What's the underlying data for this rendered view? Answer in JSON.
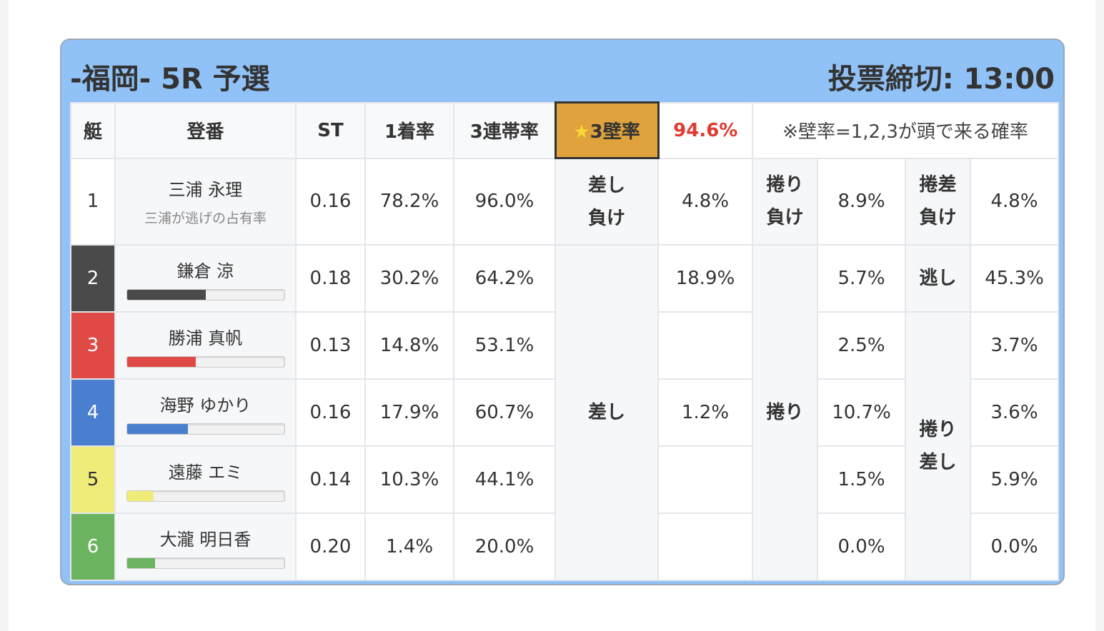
{
  "header": {
    "title": "-福岡- 5R 予選",
    "deadline": "投票締切: 13:00"
  },
  "columns": {
    "boat": "艇",
    "name": "登番",
    "st": "ST",
    "first": "1着率",
    "top3": "3連帯率",
    "wall_label": "3壁率",
    "wall_value": "94.6%",
    "note": "※壁率=1,2,3が頭で来る確率"
  },
  "star_icon": "star-icon",
  "row1": {
    "boat": "1",
    "name": "三浦 永理",
    "sub": "三浦が逃げの占有率",
    "st": "0.16",
    "first": "78.2%",
    "top3": "96.0%",
    "l1": "差し",
    "l1b": "負け",
    "v1": "4.8%",
    "l2": "捲り",
    "l2b": "負け",
    "v2": "8.9%",
    "l3": "捲差",
    "l3b": "負け",
    "v3": "4.8%"
  },
  "labels": {
    "sashi": "差し",
    "makuri": "捲り",
    "nige": "逃し",
    "makurisashi_a": "捲り",
    "makurisashi_b": "差し"
  },
  "rows": [
    {
      "boat": "2",
      "name": "鎌倉 涼",
      "st": "0.18",
      "first": "30.2%",
      "top3": "64.2%",
      "sashi": "18.9%",
      "makuri": "5.7%",
      "last": "45.3%",
      "bar": 50,
      "color": "#4a4a4a",
      "text": "#ffffff"
    },
    {
      "boat": "3",
      "name": "勝浦 真帆",
      "st": "0.13",
      "first": "14.8%",
      "top3": "53.1%",
      "sashi": "",
      "makuri": "2.5%",
      "last": "3.7%",
      "bar": 44,
      "color": "#e04a46",
      "text": "#ffffff"
    },
    {
      "boat": "4",
      "name": "海野 ゆかり",
      "st": "0.16",
      "first": "17.9%",
      "top3": "60.7%",
      "sashi": "1.2%",
      "makuri": "10.7%",
      "last": "3.6%",
      "bar": 39,
      "color": "#4a7fcf",
      "text": "#ffffff"
    },
    {
      "boat": "5",
      "name": "遠藤 エミ",
      "st": "0.14",
      "first": "10.3%",
      "top3": "44.1%",
      "sashi": "",
      "makuri": "1.5%",
      "last": "5.9%",
      "bar": 17,
      "color": "#f0ec7a",
      "text": "#333333"
    },
    {
      "boat": "6",
      "name": "大瀧 明日香",
      "st": "0.20",
      "first": "1.4%",
      "top3": "20.0%",
      "sashi": "",
      "makuri": "0.0%",
      "last": "0.0%",
      "bar": 18,
      "color": "#6bb35e",
      "text": "#ffffff"
    }
  ]
}
